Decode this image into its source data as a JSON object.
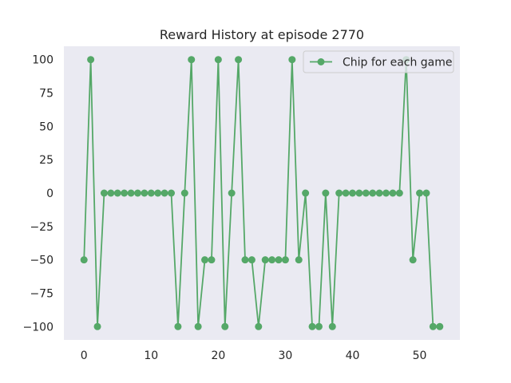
{
  "chart_data": {
    "type": "line",
    "title": "Reward History at episode 2770",
    "xlabel": "",
    "ylabel": "",
    "xlim": [
      -3,
      56
    ],
    "ylim": [
      -110,
      110
    ],
    "x_ticks": [
      0,
      10,
      20,
      30,
      40,
      50
    ],
    "x_tick_labels": [
      "0",
      "10",
      "20",
      "30",
      "40",
      "50"
    ],
    "y_ticks": [
      100,
      75,
      50,
      25,
      0,
      -25,
      -50,
      -75,
      -100
    ],
    "y_tick_labels": [
      "100",
      "75",
      "50",
      "25",
      "0",
      "−25",
      "−50",
      "−75",
      "−100"
    ],
    "grid": false,
    "legend_position": "upper right",
    "series": [
      {
        "name": "Chip for each game",
        "color": "#55a868",
        "marker": "circle",
        "x": [
          0,
          1,
          2,
          3,
          4,
          5,
          6,
          7,
          8,
          9,
          10,
          11,
          12,
          13,
          14,
          15,
          16,
          17,
          18,
          19,
          20,
          21,
          22,
          23,
          24,
          25,
          26,
          27,
          28,
          29,
          30,
          31,
          32,
          33,
          34,
          35,
          36,
          37,
          38,
          39,
          40,
          41,
          42,
          43,
          44,
          45,
          46,
          47,
          48,
          49,
          50,
          51,
          52,
          53
        ],
        "values": [
          -50,
          100,
          -100,
          0,
          0,
          0,
          0,
          0,
          0,
          0,
          0,
          0,
          0,
          0,
          -100,
          0,
          100,
          -100,
          -50,
          -50,
          100,
          -100,
          0,
          100,
          -50,
          -50,
          -100,
          -50,
          -50,
          -50,
          -50,
          100,
          -50,
          0,
          -100,
          -100,
          0,
          -100,
          0,
          0,
          0,
          0,
          0,
          0,
          0,
          0,
          0,
          0,
          100,
          -50,
          0,
          0,
          -100,
          -100
        ]
      }
    ]
  },
  "colors": {
    "plot_background": "#eaeaf2",
    "line": "#55a868",
    "text": "#262626"
  }
}
